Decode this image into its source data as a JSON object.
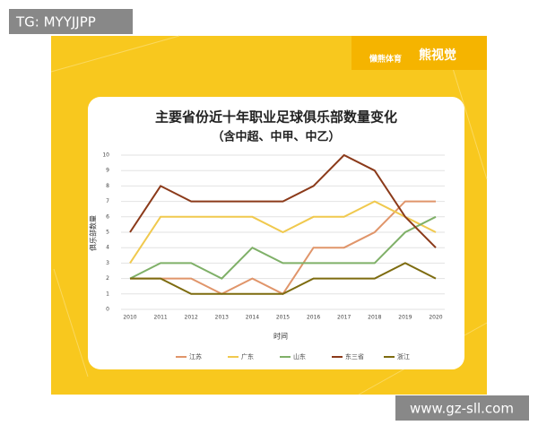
{
  "tag": "TG: MYYJJPP",
  "watermark": "www.gz-sll.com",
  "brand": {
    "name": "懒熊体育",
    "channel": "熊视觉"
  },
  "chart_data": {
    "type": "line",
    "title": "主要省份近十年职业足球俱乐部数量变化",
    "subtitle": "（含中超、中甲、中乙）",
    "x_label": "时间",
    "y_label": "俱乐部数量",
    "categories": [
      "2010",
      "2011",
      "2012",
      "2013",
      "2014",
      "2015",
      "2016",
      "2017",
      "2018",
      "2019",
      "2020"
    ],
    "series": [
      {
        "name": "江苏",
        "color": "#e0956a",
        "values": [
          2,
          2,
          2,
          1,
          2,
          1,
          4,
          4,
          5,
          7,
          7
        ]
      },
      {
        "name": "广东",
        "color": "#f0c94e",
        "values": [
          3,
          6,
          6,
          6,
          6,
          5,
          6,
          6,
          7,
          6,
          5
        ]
      },
      {
        "name": "山东",
        "color": "#7fb068",
        "values": [
          2,
          3,
          3,
          2,
          4,
          3,
          3,
          3,
          3,
          5,
          6
        ]
      },
      {
        "name": "东三省",
        "color": "#8b3a1a",
        "values": [
          5,
          8,
          7,
          7,
          7,
          7,
          8,
          10,
          9,
          6,
          4
        ]
      },
      {
        "name": "浙江",
        "color": "#7d6b0f",
        "values": [
          2,
          2,
          1,
          1,
          1,
          1,
          2,
          2,
          2,
          3,
          2
        ]
      }
    ],
    "ylim": [
      0,
      10
    ],
    "yticks": [
      0,
      1,
      2,
      3,
      4,
      5,
      6,
      7,
      8,
      9,
      10
    ],
    "grid": true,
    "legend": "bottom"
  }
}
